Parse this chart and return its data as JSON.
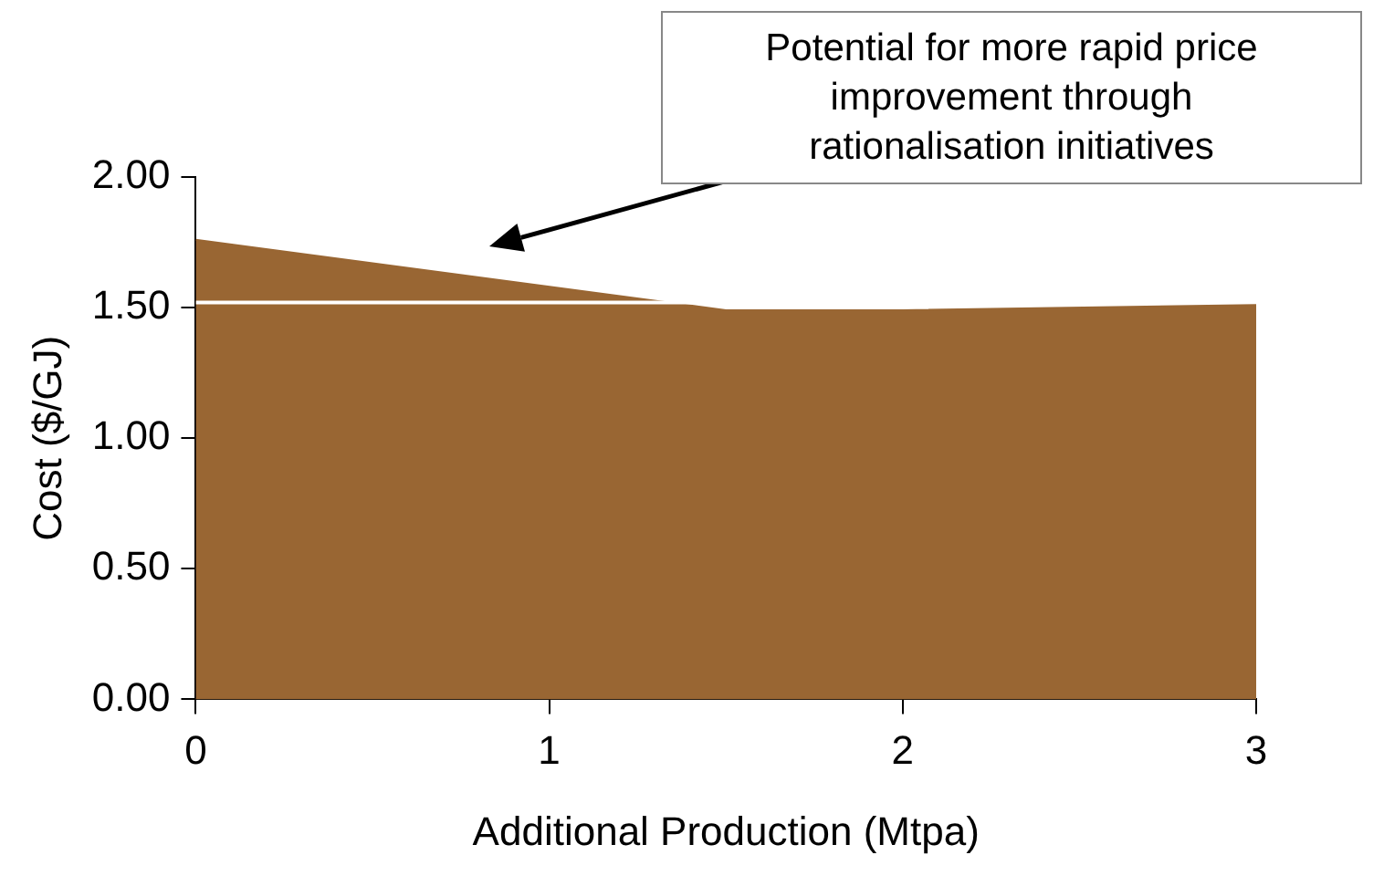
{
  "chart_data": {
    "type": "area",
    "xlabel": "Additional Production (Mtpa)",
    "ylabel": "Cost ($/GJ)",
    "xlim": [
      0,
      3
    ],
    "xticks": [
      0,
      1,
      2,
      3
    ],
    "ylim": [
      0,
      2
    ],
    "yticks": [
      {
        "value": 0,
        "label": "0.00"
      },
      {
        "value": 0.5,
        "label": "0.50"
      },
      {
        "value": 1,
        "label": "1.00"
      },
      {
        "value": 1.5,
        "label": "1.50"
      },
      {
        "value": 2,
        "label": "2.00"
      }
    ],
    "series": [
      {
        "color": "#996633",
        "x": [
          0,
          1.5,
          2,
          3
        ],
        "values": [
          1.76,
          1.49,
          1.49,
          1.51
        ]
      },
      {
        "type": "line",
        "color": "#ffffff",
        "x": [
          0,
          1.45
        ],
        "values": [
          1.52,
          1.52
        ]
      }
    ],
    "annotations": [
      "Potential for more rapid price improvement through rationalisation initiatives"
    ],
    "grid": false,
    "legend": false
  }
}
